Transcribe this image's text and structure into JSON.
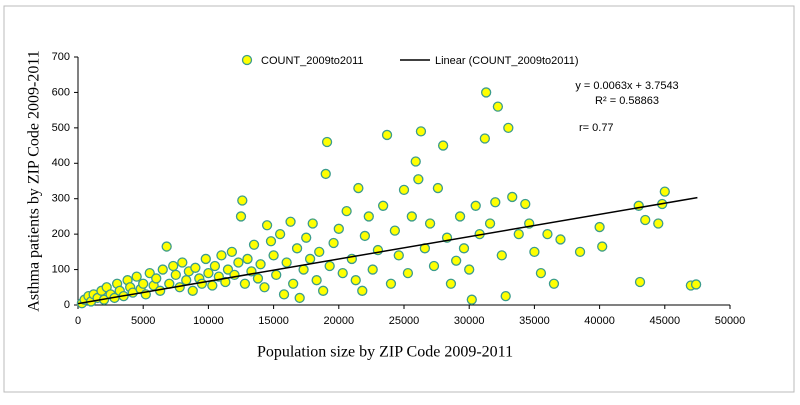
{
  "chart_data": {
    "type": "scatter",
    "xlabel": "Population size by ZIP Code 2009-2011",
    "ylabel": "Asthma patients by ZIP Code 2009-2011",
    "xlim": [
      0,
      50000
    ],
    "xticks": [
      0,
      5000,
      10000,
      15000,
      20000,
      25000,
      30000,
      35000,
      40000,
      45000,
      50000
    ],
    "ylim": [
      0,
      700
    ],
    "yticks": [
      0,
      100,
      200,
      300,
      400,
      500,
      600,
      700
    ],
    "grid": false,
    "annotations": [
      "y = 0.0063x + 3.7543",
      "R² = 0.58863",
      "r= 0.77"
    ],
    "series": [
      {
        "name": "COUNT_2009to2011",
        "color": "#ffff00",
        "edgecolor": "#3c9c8c",
        "x": [
          300,
          500,
          800,
          1000,
          1200,
          1500,
          1800,
          2000,
          2200,
          2500,
          2800,
          3000,
          3200,
          3500,
          3800,
          4000,
          4200,
          4500,
          4800,
          5000,
          5200,
          5500,
          5800,
          6000,
          6300,
          6500,
          6800,
          7000,
          7300,
          7500,
          7800,
          8000,
          8300,
          8500,
          8800,
          9000,
          9300,
          9500,
          9800,
          10000,
          10300,
          10500,
          10800,
          11000,
          11300,
          11500,
          11800,
          12000,
          12300,
          12500,
          12600,
          12800,
          13000,
          13300,
          13500,
          13800,
          14000,
          14300,
          14500,
          14800,
          15000,
          15200,
          15500,
          15800,
          16000,
          16300,
          16500,
          16800,
          17000,
          17300,
          17500,
          17800,
          18000,
          18300,
          18500,
          18800,
          19000,
          19100,
          19300,
          19600,
          20000,
          20300,
          20600,
          21000,
          21300,
          21500,
          21800,
          22000,
          22300,
          22600,
          23000,
          23400,
          23700,
          24000,
          24300,
          24600,
          25000,
          25300,
          25600,
          25900,
          26100,
          26300,
          26600,
          27000,
          27300,
          27600,
          28000,
          28300,
          28600,
          29000,
          29300,
          29600,
          30000,
          30200,
          30500,
          30800,
          31200,
          31300,
          31600,
          32000,
          32200,
          32500,
          32800,
          33000,
          33300,
          33800,
          34300,
          34600,
          35000,
          35500,
          36000,
          36500,
          37000,
          38500,
          40000,
          40200,
          43000,
          43100,
          43500,
          44500,
          44800,
          45000,
          47000,
          47400
        ],
        "values": [
          5,
          15,
          25,
          10,
          30,
          20,
          40,
          15,
          50,
          30,
          20,
          60,
          40,
          25,
          70,
          50,
          35,
          80,
          45,
          60,
          30,
          90,
          55,
          75,
          40,
          100,
          165,
          60,
          110,
          85,
          50,
          120,
          70,
          95,
          40,
          105,
          75,
          60,
          130,
          90,
          55,
          110,
          80,
          140,
          65,
          100,
          150,
          85,
          120,
          250,
          295,
          60,
          130,
          95,
          170,
          75,
          115,
          50,
          225,
          180,
          140,
          85,
          200,
          30,
          120,
          235,
          60,
          160,
          20,
          100,
          190,
          130,
          230,
          70,
          150,
          40,
          370,
          460,
          110,
          175,
          215,
          90,
          265,
          130,
          70,
          330,
          40,
          195,
          250,
          100,
          155,
          280,
          480,
          60,
          210,
          140,
          325,
          90,
          250,
          405,
          355,
          490,
          160,
          230,
          110,
          330,
          450,
          190,
          60,
          125,
          250,
          160,
          100,
          15,
          280,
          200,
          470,
          600,
          230,
          290,
          560,
          140,
          25,
          500,
          305,
          200,
          285,
          230,
          150,
          90,
          200,
          60,
          185,
          150,
          220,
          165,
          280,
          65,
          240,
          230,
          285,
          320,
          55,
          58
        ]
      }
    ],
    "trendline": {
      "name": "Linear (COUNT_2009to2011)",
      "color": "#000000",
      "x": [
        0,
        47500
      ],
      "values": [
        4,
        303
      ]
    }
  }
}
